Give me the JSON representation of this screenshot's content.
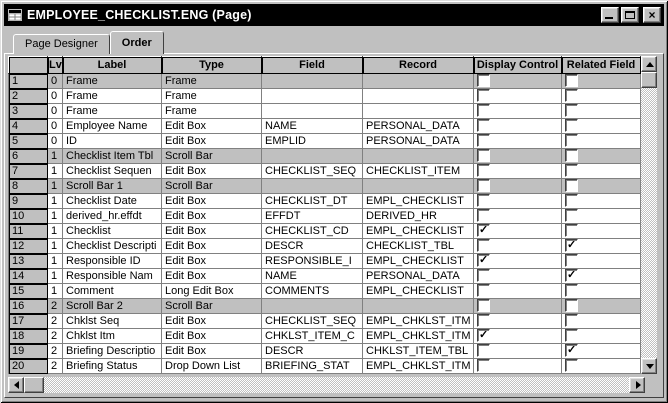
{
  "window": {
    "title": "EMPLOYEE_CHECKLIST.ENG (Page)",
    "icons": {
      "app": "page-grid-icon",
      "minimize": "minimize-icon",
      "maximize": "maximize-icon",
      "close": "close-icon"
    }
  },
  "tabs": [
    {
      "label": "Page Designer",
      "active": false
    },
    {
      "label": "Order",
      "active": true
    }
  ],
  "grid": {
    "columns": [
      "",
      "Lvl",
      "Label",
      "Type",
      "Field",
      "Record",
      "Display Control",
      "Related Field"
    ],
    "rows": [
      {
        "num": "1",
        "lv": "0",
        "label": "Frame",
        "type": "Frame",
        "field": "",
        "record": "",
        "display_control": false,
        "related_field": false,
        "gray": true
      },
      {
        "num": "2",
        "lv": "0",
        "label": "Frame",
        "type": "Frame",
        "field": "",
        "record": "",
        "display_control": false,
        "related_field": false,
        "gray": false
      },
      {
        "num": "3",
        "lv": "0",
        "label": "Frame",
        "type": "Frame",
        "field": "",
        "record": "",
        "display_control": false,
        "related_field": false,
        "gray": false
      },
      {
        "num": "4",
        "lv": "0",
        "label": "Employee Name",
        "type": "Edit Box",
        "field": "NAME",
        "record": "PERSONAL_DATA",
        "display_control": false,
        "related_field": false,
        "gray": false
      },
      {
        "num": "5",
        "lv": "0",
        "label": "ID",
        "type": "Edit Box",
        "field": "EMPLID",
        "record": "PERSONAL_DATA",
        "display_control": false,
        "related_field": false,
        "gray": false
      },
      {
        "num": "6",
        "lv": "1",
        "label": "Checklist Item Tbl",
        "type": "Scroll Bar",
        "field": "",
        "record": "",
        "display_control": false,
        "related_field": false,
        "gray": true
      },
      {
        "num": "7",
        "lv": "1",
        "label": "Checklist Sequen",
        "type": "Edit Box",
        "field": "CHECKLIST_SEQ",
        "record": "CHECKLIST_ITEM",
        "display_control": false,
        "related_field": false,
        "gray": false
      },
      {
        "num": "8",
        "lv": "1",
        "label": "Scroll Bar 1",
        "type": "Scroll Bar",
        "field": "",
        "record": "",
        "display_control": false,
        "related_field": false,
        "gray": true
      },
      {
        "num": "9",
        "lv": "1",
        "label": "Checklist Date",
        "type": "Edit Box",
        "field": "CHECKLIST_DT",
        "record": "EMPL_CHECKLIST",
        "display_control": false,
        "related_field": false,
        "gray": false
      },
      {
        "num": "10",
        "lv": "1",
        "label": "derived_hr.effdt",
        "type": "Edit Box",
        "field": "EFFDT",
        "record": "DERIVED_HR",
        "display_control": false,
        "related_field": false,
        "gray": false
      },
      {
        "num": "11",
        "lv": "1",
        "label": "Checklist",
        "type": "Edit Box",
        "field": "CHECKLIST_CD",
        "record": "EMPL_CHECKLIST",
        "display_control": true,
        "related_field": false,
        "gray": false
      },
      {
        "num": "12",
        "lv": "1",
        "label": "Checklist Descripti",
        "type": "Edit Box",
        "field": "DESCR",
        "record": "CHECKLIST_TBL",
        "display_control": false,
        "related_field": true,
        "gray": false
      },
      {
        "num": "13",
        "lv": "1",
        "label": "Responsible ID",
        "type": "Edit Box",
        "field": "RESPONSIBLE_I",
        "record": "EMPL_CHECKLIST",
        "display_control": true,
        "related_field": false,
        "gray": false
      },
      {
        "num": "14",
        "lv": "1",
        "label": "Responsible Nam",
        "type": "Edit Box",
        "field": "NAME",
        "record": "PERSONAL_DATA",
        "display_control": false,
        "related_field": true,
        "gray": false
      },
      {
        "num": "15",
        "lv": "1",
        "label": "Comment",
        "type": "Long Edit Box",
        "field": "COMMENTS",
        "record": "EMPL_CHECKLIST",
        "display_control": false,
        "related_field": false,
        "gray": false
      },
      {
        "num": "16",
        "lv": "2",
        "label": "Scroll Bar 2",
        "type": "Scroll Bar",
        "field": "",
        "record": "",
        "display_control": false,
        "related_field": false,
        "gray": true
      },
      {
        "num": "17",
        "lv": "2",
        "label": "Chklst Seq",
        "type": "Edit Box",
        "field": "CHECKLIST_SEQ",
        "record": "EMPL_CHKLST_ITM",
        "display_control": false,
        "related_field": false,
        "gray": false
      },
      {
        "num": "18",
        "lv": "2",
        "label": "Chklst Itm",
        "type": "Edit Box",
        "field": "CHKLST_ITEM_C",
        "record": "EMPL_CHKLST_ITM",
        "display_control": true,
        "related_field": false,
        "gray": false
      },
      {
        "num": "19",
        "lv": "2",
        "label": "Briefing Descriptio",
        "type": "Edit Box",
        "field": "DESCR",
        "record": "CHKLST_ITEM_TBL",
        "display_control": false,
        "related_field": true,
        "gray": false
      },
      {
        "num": "20",
        "lv": "2",
        "label": "Briefing Status",
        "type": "Drop Down List",
        "field": "BRIEFING_STAT",
        "record": "EMPL_CHKLST_ITM",
        "display_control": false,
        "related_field": false,
        "gray": false
      }
    ]
  },
  "colors": {
    "window_face": "#c0c0c0",
    "titlebar_bg": "#000000",
    "titlebar_text": "#ffffff",
    "row_gray": "#c0c0c0",
    "row_white": "#ffffff",
    "grid_line": "#808080"
  }
}
